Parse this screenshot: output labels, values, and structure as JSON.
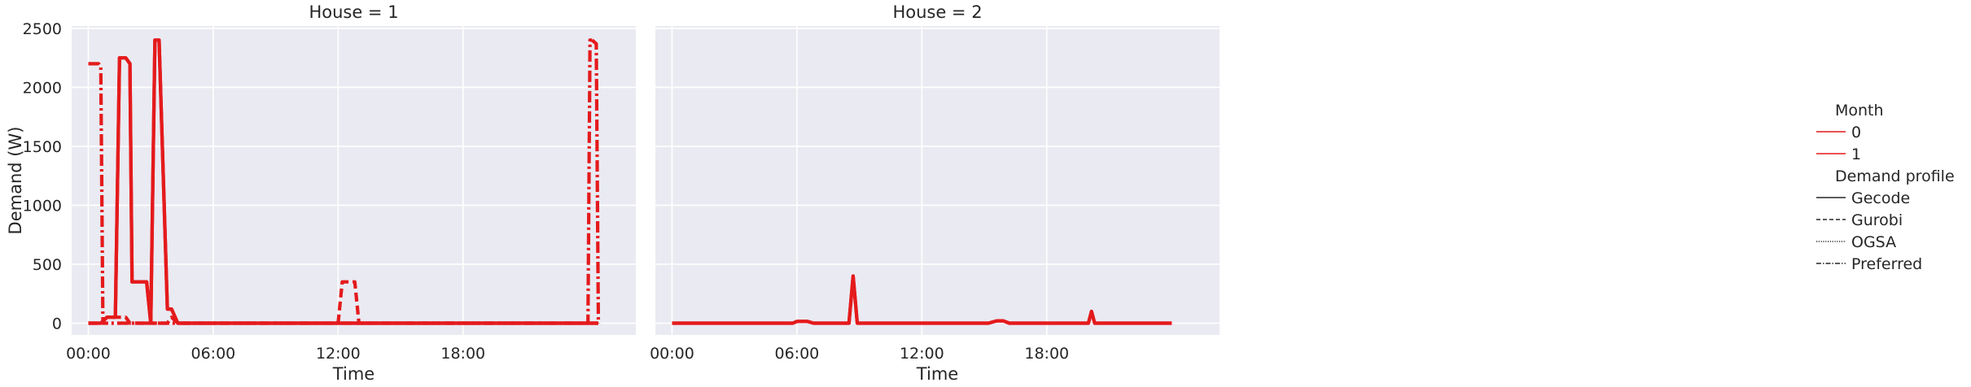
{
  "chart_data": {
    "type": "line",
    "ylabel": "Demand (W)",
    "xlabel": "Time",
    "ylim": [
      -100,
      2520
    ],
    "y_ticks": [
      0,
      500,
      1000,
      1500,
      2000,
      2500
    ],
    "xlim_hours": [
      -0.8,
      26.3
    ],
    "x_ticks": [
      {
        "hour": 0,
        "label": "00:00"
      },
      {
        "hour": 6,
        "label": "06:00"
      },
      {
        "hour": 12,
        "label": "12:00"
      },
      {
        "hour": 18,
        "label": "18:00"
      }
    ],
    "grid": true,
    "legend_placement": "right",
    "legend": {
      "hue_title": "Month",
      "hue_entries": [
        "0",
        "1"
      ],
      "style_title": "Demand profile",
      "style_entries": [
        "Gecode",
        "Gurobi",
        "OGSA",
        "Preferred"
      ]
    },
    "colors": {
      "series": "#e41a1c",
      "panel_bg": "#eaeaf2",
      "grid": "#ffffff"
    },
    "facets": [
      {
        "title": "House = 1",
        "series": [
          {
            "month": "0",
            "profile": "Preferred",
            "x": [
              0,
              0.5,
              0.6,
              0.7,
              24.0,
              24.1,
              24.2
            ],
            "y": [
              2200,
              2200,
              2170,
              0,
              0,
              2400,
              2400
            ]
          },
          {
            "month": "0",
            "profile": "Preferred",
            "x": [
              24.2,
              24.4,
              24.5
            ],
            "y": [
              2400,
              2370,
              0
            ]
          },
          {
            "month": "0",
            "profile": "Gurobi",
            "x": [
              0,
              0.6,
              0.9,
              1.8,
              2.0,
              3.8,
              4.0,
              4.3,
              12.0,
              12.2,
              12.8,
              13.0,
              24.5
            ],
            "y": [
              0,
              0,
              50,
              50,
              0,
              0,
              50,
              0,
              0,
              350,
              350,
              0,
              0
            ]
          },
          {
            "month": "0",
            "profile": "Gecode",
            "x": [
              0,
              0.6,
              0.9,
              1.3,
              1.5,
              1.8,
              2.0,
              2.1,
              2.8,
              3.0,
              3.2,
              3.4,
              3.8,
              4.0,
              4.3,
              4.5,
              24.5
            ],
            "y": [
              0,
              0,
              50,
              50,
              2250,
              2250,
              2200,
              350,
              350,
              0,
              2400,
              2400,
              120,
              120,
              0,
              0,
              0
            ]
          },
          {
            "month": "1",
            "profile": "Gecode",
            "x": [
              0,
              0.6,
              0.9,
              1.3,
              1.5,
              1.8,
              2.0,
              2.1,
              2.8,
              3.0,
              3.2,
              3.4,
              3.8,
              4.0,
              4.3,
              4.5,
              24.5
            ],
            "y": [
              0,
              0,
              50,
              50,
              2250,
              2250,
              2200,
              350,
              350,
              0,
              2400,
              2400,
              120,
              120,
              0,
              0,
              0
            ]
          }
        ]
      },
      {
        "title": "House = 2",
        "series": [
          {
            "month": "0",
            "profile": "Gecode",
            "x": [
              0,
              5.8,
              6.0,
              6.5,
              6.8,
              8.5,
              8.7,
              8.9,
              15.2,
              15.6,
              15.9,
              16.2,
              20.0,
              20.15,
              20.3,
              24.0
            ],
            "y": [
              0,
              0,
              15,
              15,
              0,
              0,
              400,
              0,
              0,
              20,
              20,
              0,
              0,
              100,
              0,
              0
            ]
          },
          {
            "month": "1",
            "profile": "Gecode",
            "x": [
              0,
              5.8,
              6.0,
              6.5,
              6.8,
              8.5,
              8.7,
              8.9,
              15.2,
              15.6,
              15.9,
              16.2,
              20.0,
              20.15,
              20.3,
              24.0
            ],
            "y": [
              0,
              0,
              15,
              15,
              0,
              0,
              400,
              0,
              0,
              20,
              20,
              0,
              0,
              100,
              0,
              0
            ]
          }
        ]
      }
    ]
  }
}
